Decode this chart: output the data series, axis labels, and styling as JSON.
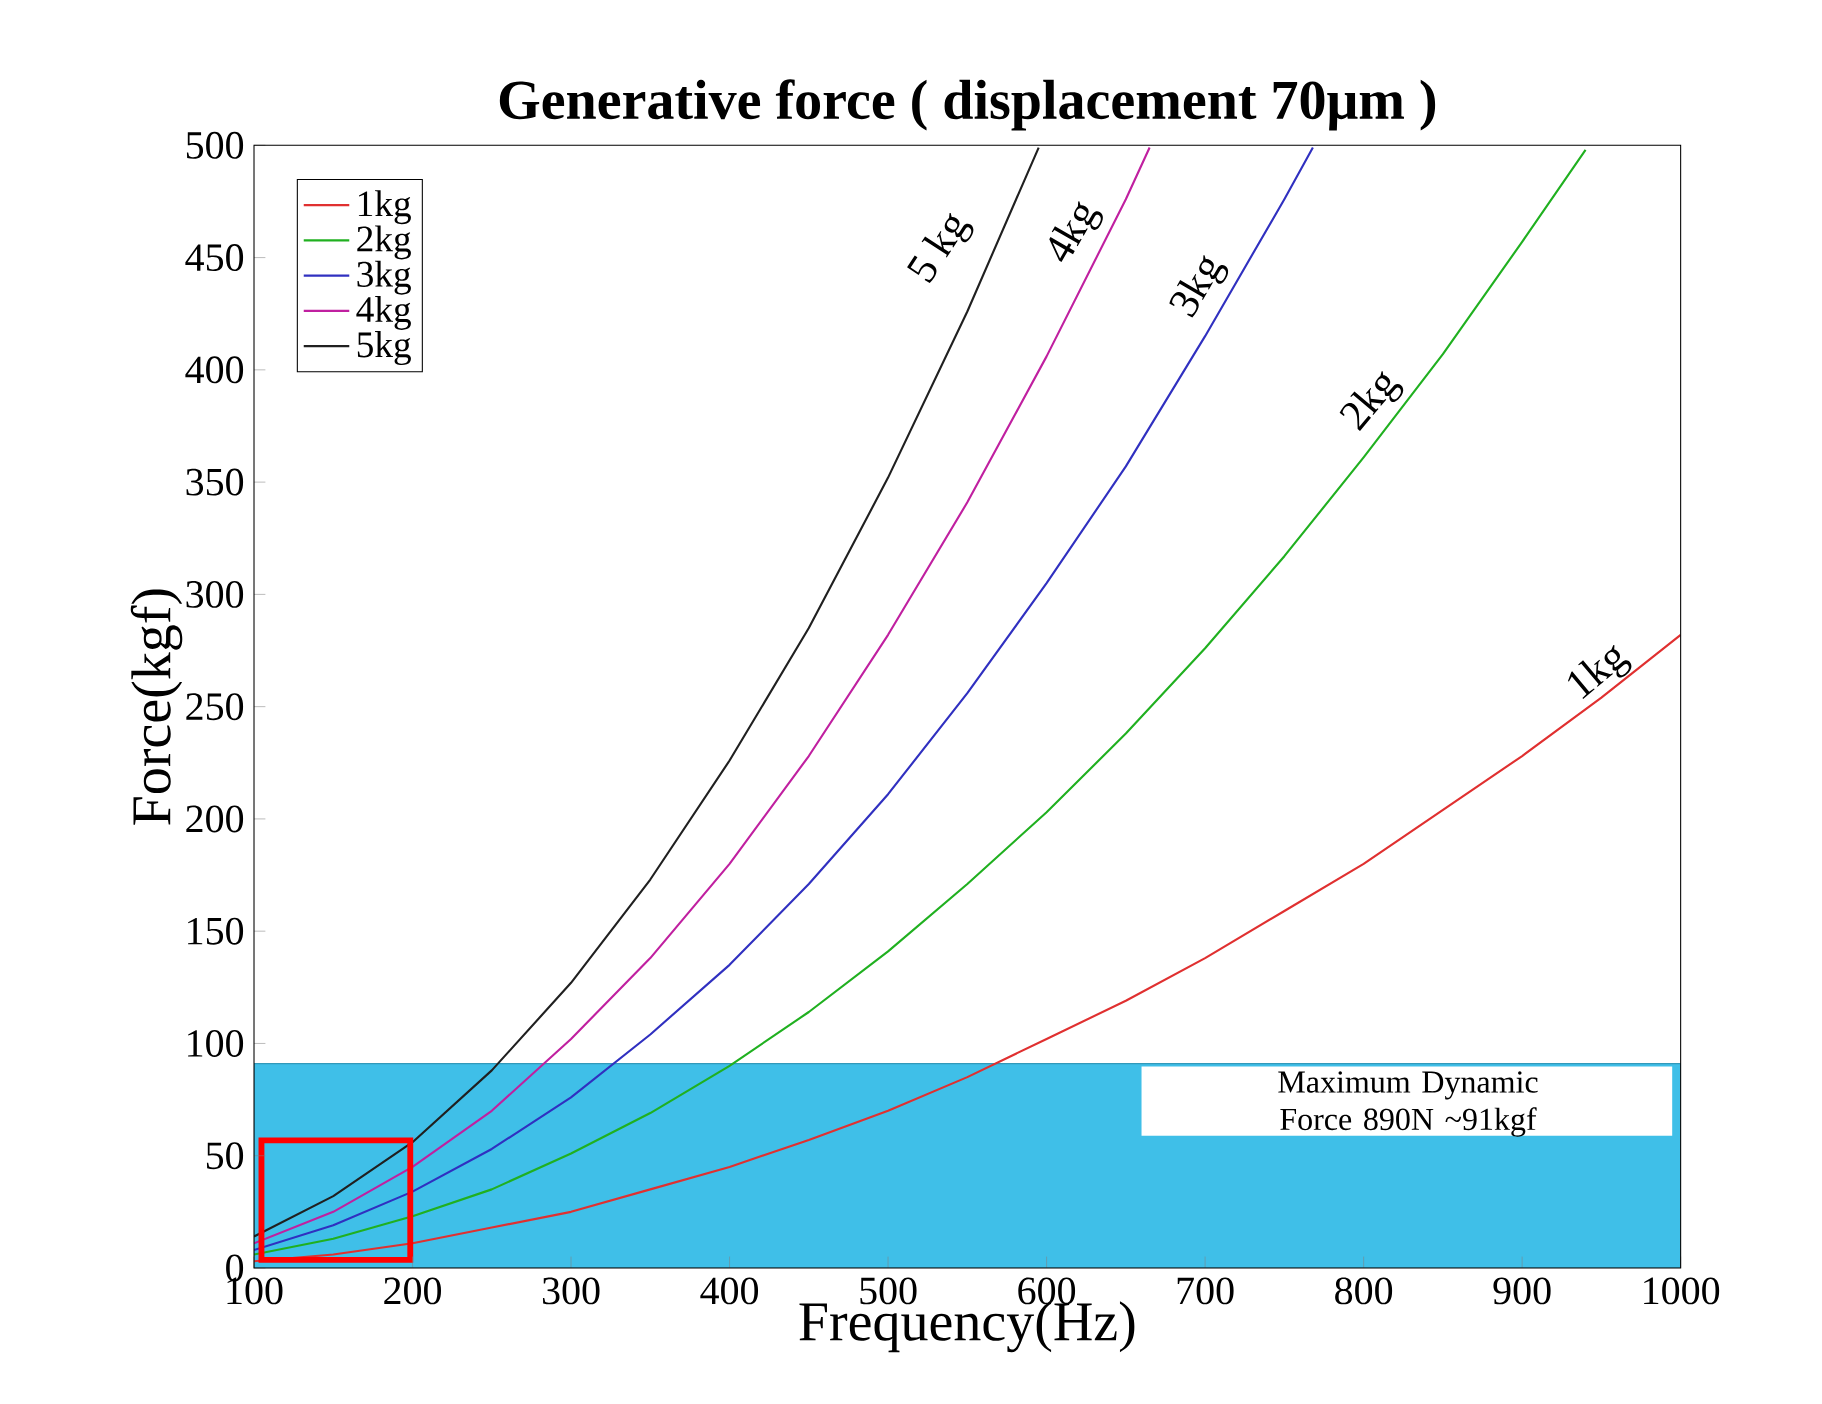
{
  "chart_data": {
    "type": "line",
    "title": "Generative force ( displacement 70μm )",
    "xlabel": "Frequency(Hz)",
    "ylabel": "Force(kgf)",
    "xlim": [
      100,
      1000
    ],
    "xticks": [
      100,
      200,
      300,
      400,
      500,
      600,
      700,
      800,
      900,
      1000
    ],
    "ylim": [
      0,
      500
    ],
    "yticks": [
      0,
      50,
      100,
      150,
      200,
      250,
      300,
      350,
      400,
      450,
      500
    ],
    "legend": "top left",
    "line_style": "solid",
    "marker": "none",
    "series": [
      {
        "name": "1kg",
        "color": "#e03030",
        "x": [
          100,
          150,
          200,
          250,
          300,
          350,
          400,
          450,
          500,
          550,
          600,
          650,
          700,
          750,
          800,
          850,
          900,
          950,
          1000
        ],
        "values": [
          3,
          6,
          11,
          18,
          25,
          35,
          45,
          57,
          70,
          85,
          102,
          119,
          138,
          159,
          180,
          204,
          228,
          254,
          282
        ]
      },
      {
        "name": "2kg",
        "color": "#20b020",
        "x": [
          100,
          150,
          200,
          250,
          300,
          350,
          400,
          450,
          500,
          550,
          600,
          650,
          700,
          750,
          800,
          850,
          900,
          940
        ],
        "values": [
          6,
          13,
          23,
          35,
          51,
          69,
          90,
          114,
          141,
          171,
          203,
          238,
          276,
          317,
          361,
          407,
          457,
          498
        ]
      },
      {
        "name": "3kg",
        "color": "#3030c0",
        "x": [
          100,
          150,
          200,
          250,
          300,
          350,
          400,
          450,
          500,
          550,
          600,
          650,
          700,
          750,
          768
        ],
        "values": [
          8,
          19,
          34,
          53,
          76,
          104,
          135,
          171,
          211,
          256,
          305,
          357,
          415,
          476,
          499
        ]
      },
      {
        "name": "4kg",
        "color": "#c020a0",
        "x": [
          100,
          150,
          200,
          250,
          300,
          350,
          400,
          450,
          500,
          550,
          600,
          650,
          665
        ],
        "values": [
          11,
          25,
          45,
          70,
          102,
          138,
          180,
          228,
          282,
          341,
          406,
          476,
          499
        ]
      },
      {
        "name": "5kg",
        "color": "#202020",
        "x": [
          100,
          150,
          200,
          250,
          300,
          350,
          400,
          450,
          500,
          550,
          595
        ],
        "values": [
          14,
          32,
          56,
          88,
          127,
          173,
          226,
          285,
          352,
          426,
          499
        ]
      }
    ],
    "bands": [
      {
        "axis": "y",
        "from": 0,
        "to": 91,
        "color": "#3fbfe8",
        "label": "Maximum Dynamic Force 890N ~91kgf"
      }
    ],
    "annotations": [
      "5 kg",
      "4kg",
      "3kg",
      "2kg",
      "1kg"
    ]
  }
}
